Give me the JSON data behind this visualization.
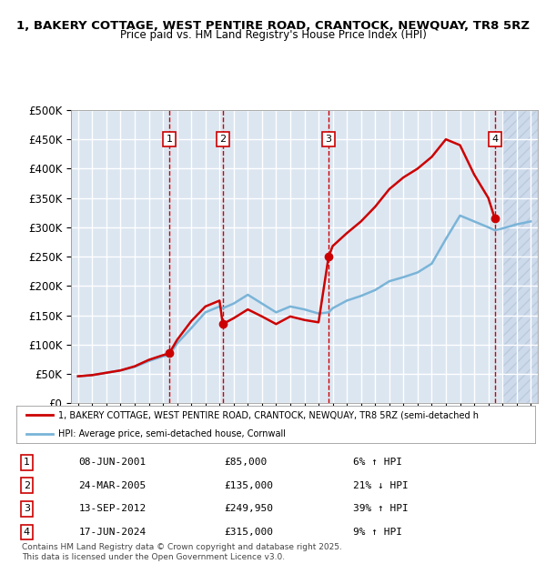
{
  "title1": "1, BAKERY COTTAGE, WEST PENTIRE ROAD, CRANTOCK, NEWQUAY, TR8 5RZ",
  "title2": "Price paid vs. HM Land Registry's House Price Index (HPI)",
  "ylabel_ticks": [
    "£0",
    "£50K",
    "£100K",
    "£150K",
    "£200K",
    "£250K",
    "£300K",
    "£350K",
    "£400K",
    "£450K",
    "£500K"
  ],
  "ytick_values": [
    0,
    50000,
    100000,
    150000,
    200000,
    250000,
    300000,
    350000,
    400000,
    450000,
    500000
  ],
  "xlim": [
    1994.5,
    2027.5
  ],
  "ylim": [
    0,
    500000
  ],
  "background_color": "#ffffff",
  "chart_bg_color": "#dce6f1",
  "grid_color": "#ffffff",
  "hpi_color": "#7ab4d8",
  "price_color": "#cc0000",
  "sale_marker_color": "#cc0000",
  "dashed_line_color": "#cc0000",
  "future_hatch_color": "#dce6f1",
  "transactions": [
    {
      "num": 1,
      "year": 2001.44,
      "price": 85000,
      "label": "1",
      "x_label": 2001.5
    },
    {
      "num": 2,
      "year": 2005.23,
      "price": 135000,
      "label": "2",
      "x_label": 2005.3
    },
    {
      "num": 3,
      "year": 2012.71,
      "price": 249950,
      "label": "3",
      "x_label": 2012.7
    },
    {
      "num": 4,
      "year": 2024.46,
      "price": 315000,
      "label": "4",
      "x_label": 2024.5
    }
  ],
  "table_rows": [
    {
      "num": "1",
      "date": "08-JUN-2001",
      "price": "£85,000",
      "note": "6% ↑ HPI"
    },
    {
      "num": "2",
      "date": "24-MAR-2005",
      "price": "£135,000",
      "note": "21% ↓ HPI"
    },
    {
      "num": "3",
      "date": "13-SEP-2012",
      "price": "£249,950",
      "note": "39% ↑ HPI"
    },
    {
      "num": "4",
      "date": "17-JUN-2024",
      "price": "£315,000",
      "note": "9% ↑ HPI"
    }
  ],
  "legend_line1": "1, BAKERY COTTAGE, WEST PENTIRE ROAD, CRANTOCK, NEWQUAY, TR8 5RZ (semi-detached h",
  "legend_line2": "HPI: Average price, semi-detached house, Cornwall",
  "footnote": "Contains HM Land Registry data © Crown copyright and database right 2025.\nThis data is licensed under the Open Government Licence v3.0.",
  "hpi_data": {
    "years": [
      1995,
      1996,
      1997,
      1998,
      1999,
      2000,
      2001,
      2001.44,
      2002,
      2003,
      2004,
      2005,
      2005.23,
      2006,
      2007,
      2008,
      2009,
      2010,
      2011,
      2012,
      2012.71,
      2013,
      2014,
      2015,
      2016,
      2017,
      2018,
      2019,
      2020,
      2021,
      2022,
      2023,
      2024,
      2024.46,
      2025,
      2026,
      2027
    ],
    "values": [
      46000,
      48000,
      52000,
      56000,
      62000,
      72000,
      80000,
      82000,
      102000,
      128000,
      155000,
      165000,
      162000,
      170000,
      185000,
      170000,
      155000,
      165000,
      160000,
      153000,
      155000,
      162000,
      175000,
      183000,
      193000,
      208000,
      215000,
      223000,
      238000,
      280000,
      320000,
      310000,
      300000,
      295000,
      298000,
      305000,
      310000
    ]
  },
  "price_data": {
    "years": [
      1995,
      1996,
      1997,
      1998,
      1999,
      2000,
      2001,
      2001.44,
      2002,
      2003,
      2004,
      2005,
      2005.23,
      2006,
      2007,
      2008,
      2009,
      2010,
      2011,
      2012,
      2012.71,
      2013,
      2014,
      2015,
      2016,
      2017,
      2018,
      2019,
      2020,
      2021,
      2022,
      2023,
      2024,
      2024.46
    ],
    "values": [
      46000,
      48000,
      52000,
      56000,
      63000,
      74000,
      82000,
      85000,
      108000,
      140000,
      165000,
      175000,
      135000,
      145000,
      160000,
      148000,
      135000,
      148000,
      142000,
      138000,
      249950,
      268000,
      290000,
      310000,
      335000,
      365000,
      385000,
      400000,
      420000,
      450000,
      440000,
      390000,
      350000,
      315000
    ]
  }
}
